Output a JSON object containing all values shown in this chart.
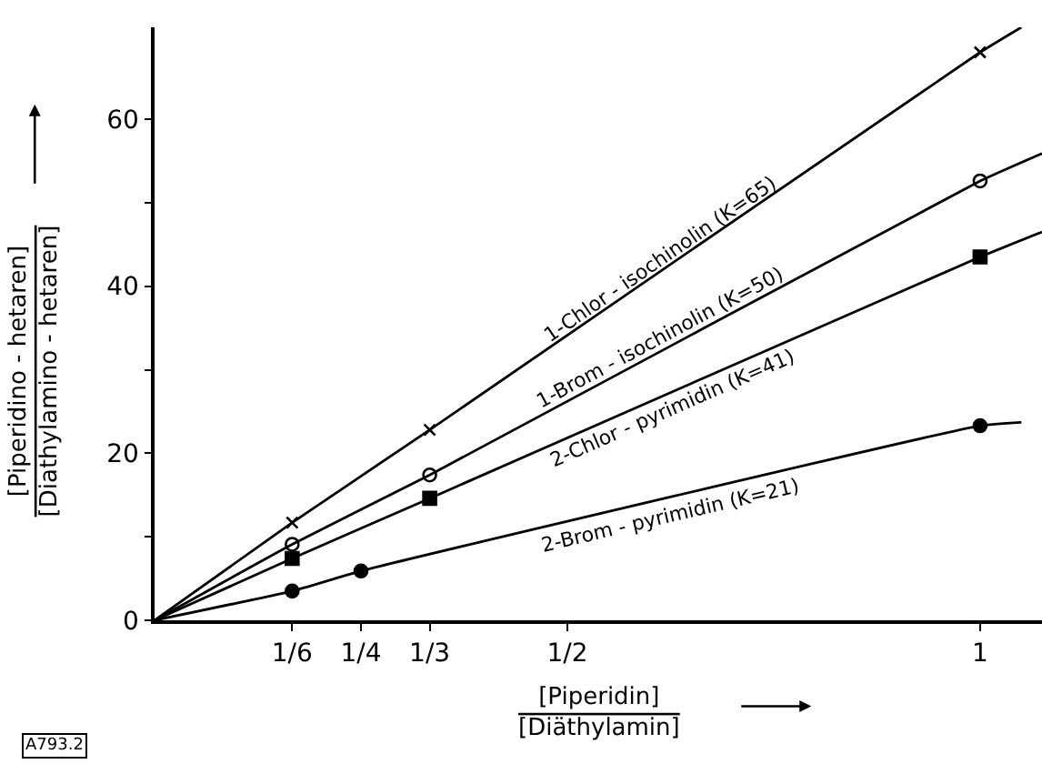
{
  "chart_data": {
    "type": "scatter",
    "xlabel": "[Piperidin]\n[Diäthylamin]",
    "ylabel": "[Piperidino - hetaren]\n[Diathylamino - hetaren]",
    "xlim": [
      0,
      1.075
    ],
    "ylim": [
      0,
      71
    ],
    "xticks": [
      {
        "value": 0.1667,
        "label": "1/6"
      },
      {
        "value": 0.25,
        "label": "1/4"
      },
      {
        "value": 0.3333,
        "label": "1/3"
      },
      {
        "value": 0.5,
        "label": "1/2"
      },
      1
    ],
    "yticks": [
      0,
      {
        "value": 10,
        "label": null
      },
      20,
      {
        "value": 30,
        "label": null
      },
      40,
      {
        "value": 50,
        "label": null
      },
      60
    ],
    "annotations": [
      "A793.2"
    ],
    "series": [
      {
        "marker": "cross",
        "color": "#000000",
        "x": [
          0.1667,
          0.3333,
          1
        ],
        "values": [
          11.7,
          22.8,
          68
        ]
      },
      {
        "marker": "circle-open",
        "color": "#000000",
        "x": [
          0.1667,
          0.3333,
          1
        ],
        "values": [
          9.1,
          17.4,
          52.6
        ]
      },
      {
        "marker": "square",
        "color": "#000000",
        "x": [
          0.1667,
          0.3333,
          1
        ],
        "values": [
          7.4,
          14.6,
          43.5
        ]
      },
      {
        "marker": "circle",
        "color": "#000000",
        "x": [
          0.1667,
          0.25,
          1
        ],
        "values": [
          3.5,
          5.9,
          23.3
        ]
      },
      {
        "type": "line",
        "name": "1-Chlor - isochinolin (K=65)",
        "color": "#000000",
        "x": [
          0,
          0.1667,
          0.3333,
          1,
          1.05
        ],
        "values": [
          0,
          11.7,
          22.8,
          68,
          71
        ]
      },
      {
        "type": "line",
        "name": "1-Brom - isochinolin (K=50)",
        "color": "#000000",
        "x": [
          0,
          0.1667,
          0.3333,
          1,
          1.075
        ],
        "values": [
          0,
          9.1,
          17.4,
          52.6,
          55.9
        ]
      },
      {
        "type": "line",
        "name": "2-Chlor - pyrimidin (K=41)",
        "color": "#000000",
        "x": [
          0,
          0.1667,
          0.3333,
          1,
          1.075
        ],
        "values": [
          0,
          7.4,
          14.6,
          43.5,
          46.5
        ]
      },
      {
        "type": "line",
        "name": "2-Brom - pyrimidin (K=21)",
        "color": "#000000",
        "x": [
          0,
          0.1667,
          0.25,
          1,
          1.05
        ],
        "values": [
          0,
          3.5,
          5.9,
          23.3,
          23.7
        ]
      }
    ]
  }
}
